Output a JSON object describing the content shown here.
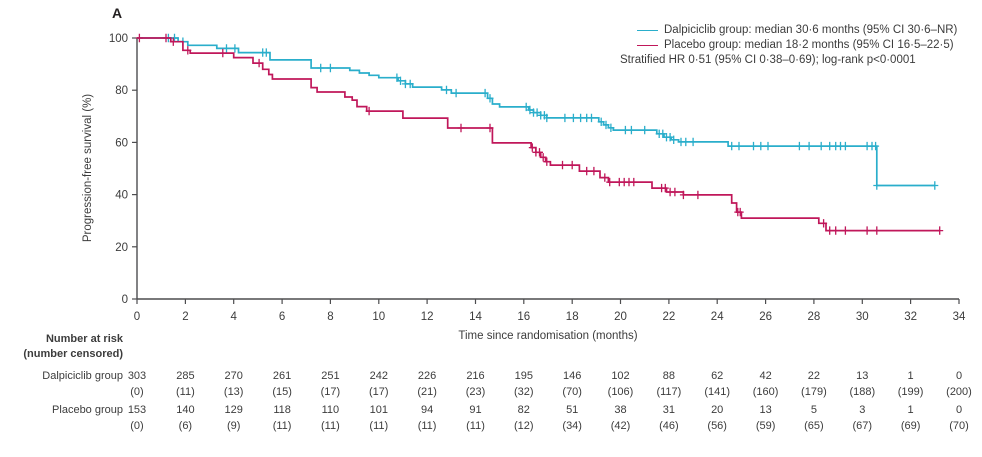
{
  "panel_label": "A",
  "text_color": "#3c3c3c",
  "chart_data": {
    "type": "line",
    "subtype": "kaplan-meier-step",
    "xlabel": "Time since randomisation (months)",
    "ylabel": "Progression-free survival (%)",
    "xlim": [
      0,
      34
    ],
    "ylim": [
      0,
      100
    ],
    "xticks": [
      0,
      2,
      4,
      6,
      8,
      10,
      12,
      14,
      16,
      18,
      20,
      22,
      24,
      26,
      28,
      30,
      32,
      34
    ],
    "yticks": [
      0,
      20,
      40,
      60,
      80,
      100
    ],
    "grid": "off",
    "axis_color": "#4d4d4f",
    "legend_position": "top-right",
    "legend": {
      "items": [
        {
          "series": "Dalpiciclib group",
          "swatch_color": "#2aaecb",
          "label": "Dalpiciclib group: median 30·6 months (95% CI 30·6–NR)"
        },
        {
          "series": "Placebo group",
          "swatch_color": "#c0175a",
          "label": "Placebo group: median 18·2 months (95% CI 16·5–22·5)"
        }
      ],
      "note": "Stratified HR 0·51 (95% CI 0·38–0·69); log-rank p<0·0001"
    },
    "series": [
      {
        "name": "Dalpiciclib group",
        "color": "#2aaecb",
        "steps": [
          [
            0,
            100
          ],
          [
            1.7,
            98.6
          ],
          [
            2.1,
            97.2
          ],
          [
            3.3,
            96.0
          ],
          [
            4.2,
            94.4
          ],
          [
            5.5,
            91.6
          ],
          [
            7.2,
            88.5
          ],
          [
            8.8,
            87.6
          ],
          [
            9.2,
            86.6
          ],
          [
            9.6,
            85.7
          ],
          [
            10.0,
            84.8
          ],
          [
            10.8,
            83.6
          ],
          [
            11.1,
            82.4
          ],
          [
            11.4,
            81.2
          ],
          [
            12.6,
            80.1
          ],
          [
            13.0,
            78.9
          ],
          [
            14.5,
            76.9
          ],
          [
            14.7,
            74.7
          ],
          [
            15.0,
            73.6
          ],
          [
            16.2,
            72.4
          ],
          [
            16.4,
            71.4
          ],
          [
            16.7,
            70.4
          ],
          [
            16.95,
            69.4
          ],
          [
            19.1,
            67.9
          ],
          [
            19.3,
            66.7
          ],
          [
            19.5,
            65.6
          ],
          [
            19.7,
            64.7
          ],
          [
            21.5,
            63.3
          ],
          [
            21.8,
            62.0
          ],
          [
            22.1,
            61.0
          ],
          [
            22.4,
            60.2
          ],
          [
            24.45,
            58.6
          ],
          [
            30.6,
            43.5
          ]
        ],
        "end_time": 33.0,
        "censor_times": [
          1.3,
          1.55,
          1.9,
          3.7,
          4.05,
          5.2,
          5.35,
          7.6,
          8.0,
          10.75,
          10.9,
          11.1,
          11.3,
          12.8,
          13.2,
          14.4,
          14.6,
          16.1,
          16.25,
          16.4,
          16.55,
          16.7,
          16.85,
          16.95,
          17.7,
          18.05,
          18.35,
          18.6,
          18.8,
          19.2,
          19.4,
          19.6,
          20.2,
          20.45,
          21.0,
          21.6,
          21.75,
          21.9,
          22.05,
          22.2,
          22.5,
          22.7,
          23.0,
          24.6,
          24.9,
          25.5,
          25.8,
          26.1,
          27.4,
          27.8,
          28.3,
          28.65,
          28.9,
          29.1,
          29.3,
          30.2,
          30.4,
          30.55,
          30.6,
          33.0
        ]
      },
      {
        "name": "Placebo group",
        "color": "#c0175a",
        "steps": [
          [
            0,
            100
          ],
          [
            1.4,
            98.6
          ],
          [
            1.9,
            95.3
          ],
          [
            2.2,
            94.2
          ],
          [
            4.0,
            92.5
          ],
          [
            4.8,
            90.4
          ],
          [
            5.2,
            88.0
          ],
          [
            5.45,
            86.0
          ],
          [
            5.6,
            84.3
          ],
          [
            7.2,
            81.0
          ],
          [
            7.45,
            79.3
          ],
          [
            8.6,
            77.4
          ],
          [
            8.9,
            76.2
          ],
          [
            9.1,
            73.7
          ],
          [
            9.5,
            72.0
          ],
          [
            11.0,
            69.3
          ],
          [
            12.85,
            65.5
          ],
          [
            14.7,
            59.8
          ],
          [
            16.3,
            58.0
          ],
          [
            16.5,
            56.2
          ],
          [
            16.7,
            54.3
          ],
          [
            16.9,
            52.6
          ],
          [
            17.1,
            51.3
          ],
          [
            18.3,
            49.0
          ],
          [
            19.15,
            46.5
          ],
          [
            19.5,
            44.8
          ],
          [
            21.3,
            42.5
          ],
          [
            21.9,
            41.0
          ],
          [
            22.6,
            39.9
          ],
          [
            24.6,
            36.8
          ],
          [
            24.8,
            33.3
          ],
          [
            25.0,
            31.0
          ],
          [
            28.2,
            29.0
          ],
          [
            28.5,
            26.2
          ]
        ],
        "end_time": 33.2,
        "censor_times": [
          0.1,
          1.2,
          1.5,
          2.1,
          3.55,
          5.05,
          9.6,
          13.4,
          14.6,
          16.35,
          16.5,
          16.65,
          16.8,
          16.95,
          17.6,
          18.0,
          18.6,
          18.9,
          19.35,
          19.55,
          19.95,
          20.15,
          20.35,
          20.55,
          21.7,
          21.85,
          22.05,
          22.25,
          22.6,
          23.2,
          24.85,
          24.95,
          28.4,
          28.65,
          28.9,
          29.3,
          30.2,
          30.6,
          33.2
        ]
      }
    ],
    "number_at_risk": {
      "header_line1": "Number at risk",
      "header_line2": "(number censored)",
      "times": [
        0,
        2,
        4,
        6,
        8,
        10,
        12,
        14,
        16,
        18,
        20,
        22,
        24,
        26,
        28,
        30,
        32,
        34
      ],
      "rows": [
        {
          "label": "Dalpiciclib group",
          "at_risk": [
            "303",
            "285",
            "270",
            "261",
            "251",
            "242",
            "226",
            "216",
            "195",
            "146",
            "102",
            "88",
            "62",
            "42",
            "22",
            "13",
            "1",
            "0"
          ],
          "censored": [
            "(0)",
            "(11)",
            "(13)",
            "(15)",
            "(17)",
            "(17)",
            "(21)",
            "(23)",
            "(32)",
            "(70)",
            "(106)",
            "(117)",
            "(141)",
            "(160)",
            "(179)",
            "(188)",
            "(199)",
            "(200)"
          ]
        },
        {
          "label": "Placebo group",
          "at_risk": [
            "153",
            "140",
            "129",
            "118",
            "110",
            "101",
            "94",
            "91",
            "82",
            "51",
            "38",
            "31",
            "20",
            "13",
            "5",
            "3",
            "1",
            "0"
          ],
          "censored": [
            "(0)",
            "(6)",
            "(9)",
            "(11)",
            "(11)",
            "(11)",
            "(11)",
            "(11)",
            "(12)",
            "(34)",
            "(42)",
            "(46)",
            "(56)",
            "(59)",
            "(65)",
            "(67)",
            "(69)",
            "(70)"
          ]
        }
      ]
    }
  }
}
